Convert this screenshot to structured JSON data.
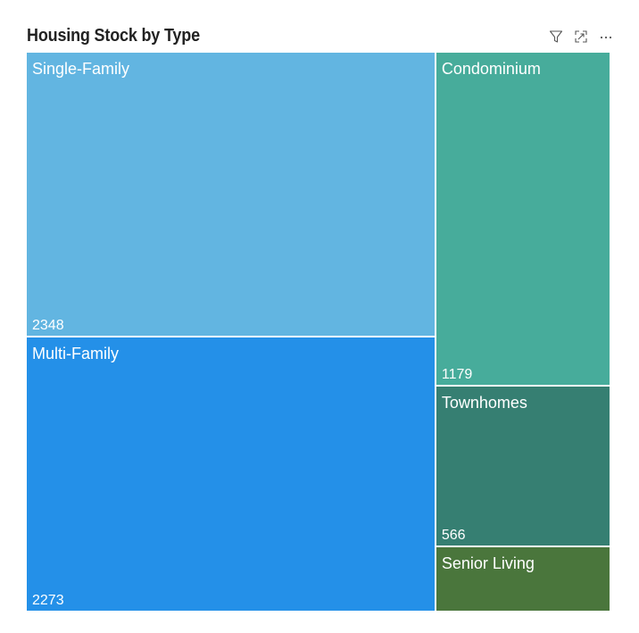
{
  "header": {
    "title": "Housing Stock by Type"
  },
  "toolbar": {
    "filter_icon": "filter-icon",
    "focus_icon": "focus-mode-icon",
    "more_icon": "more-options-icon"
  },
  "chart_data": {
    "type": "treemap",
    "title": "Housing Stock by Type",
    "items": [
      {
        "name": "Single-Family",
        "value": 2348,
        "value_label": "2348",
        "color": "#62b5e1"
      },
      {
        "name": "Multi-Family",
        "value": 2273,
        "value_label": "2273",
        "color": "#2490e8"
      },
      {
        "name": "Condominium",
        "value": 1179,
        "value_label": "1179",
        "color": "#47ac9b"
      },
      {
        "name": "Townhomes",
        "value": 566,
        "value_label": "566",
        "color": "#367f72"
      },
      {
        "name": "Senior Living",
        "value": 230,
        "value_label": "",
        "color": "#4a763c"
      }
    ]
  }
}
